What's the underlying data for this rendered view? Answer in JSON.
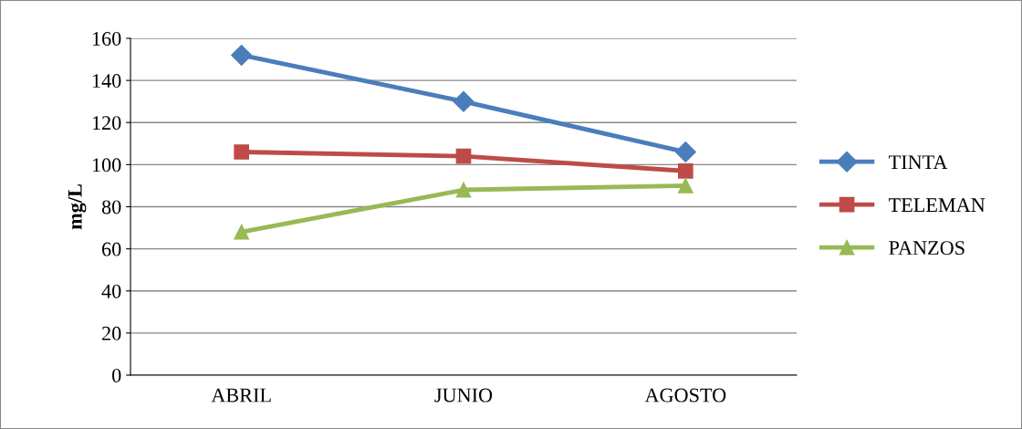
{
  "chart_data": {
    "type": "line",
    "ylabel": "mg/L",
    "categories": [
      "ABRIL",
      "JUNIO",
      "AGOSTO"
    ],
    "series": [
      {
        "name": "TINTA",
        "color": "#4a7ebb",
        "marker": "diamond",
        "values": [
          152,
          130,
          106
        ]
      },
      {
        "name": "TELEMAN",
        "color": "#be4b48",
        "marker": "square",
        "values": [
          106,
          104,
          97
        ]
      },
      {
        "name": "PANZOS",
        "color": "#98b954",
        "marker": "triangle",
        "values": [
          68,
          88,
          90
        ]
      }
    ],
    "ylim": [
      0,
      160
    ],
    "yticks": [
      0,
      20,
      40,
      60,
      80,
      100,
      120,
      140,
      160
    ],
    "grid": "y",
    "legend": "right",
    "line_style": "solid"
  }
}
